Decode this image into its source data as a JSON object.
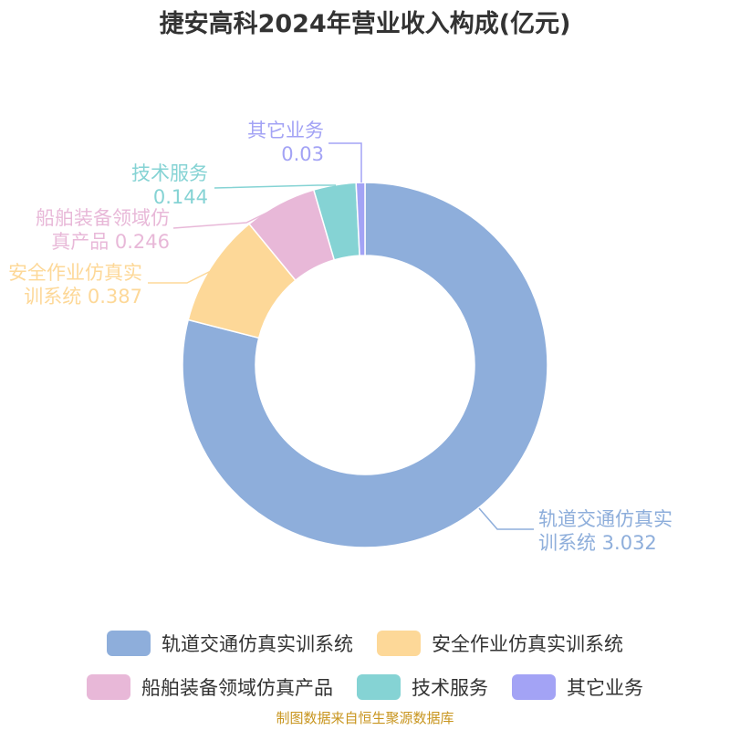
{
  "chart_data": {
    "type": "pie",
    "title": "捷安高科2024年营业收入构成(亿元)",
    "source": "制图数据来自恒生聚源数据库",
    "legend_position": "bottom",
    "categories": [
      "轨道交通仿真实训系统",
      "安全作业仿真实训系统",
      "船舶装备领域仿真产品",
      "技术服务",
      "其它业务"
    ],
    "values": [
      3.032,
      0.387,
      0.246,
      0.144,
      0.03
    ],
    "labels": [
      [
        "轨道交通仿真实",
        "训系统 3.032"
      ],
      [
        "安全作业仿真实",
        "训系统 0.387"
      ],
      [
        "船舶装备领域仿",
        "真产品 0.246"
      ],
      [
        "技术服务",
        "0.144"
      ],
      [
        "其它业务",
        "0.03"
      ]
    ],
    "colors": [
      "#8eaedb",
      "#fdd898",
      "#e8b8d8",
      "#85d3d4",
      "#a3a3f5"
    ],
    "legend_rows": [
      [
        0,
        1
      ],
      [
        2,
        3,
        4
      ]
    ]
  }
}
